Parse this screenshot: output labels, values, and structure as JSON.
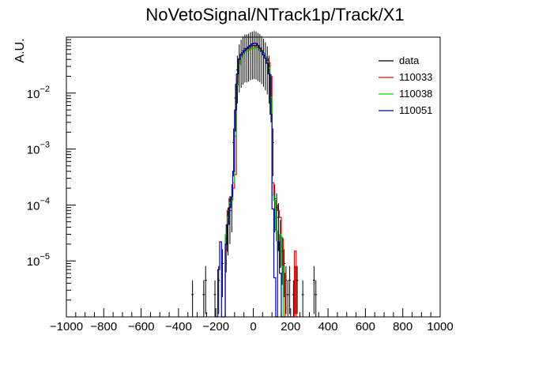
{
  "chart_data": {
    "type": "line",
    "title": "NoVetoSignal/NTrack1p/Track/X1",
    "xlabel": "",
    "ylabel": "A.U.",
    "xlim": [
      -1000,
      1000
    ],
    "ylim": [
      1e-06,
      0.1
    ],
    "ylog": true,
    "grid": false,
    "legend_position": "top-right",
    "x_ticks": [
      -1000,
      -800,
      -600,
      -400,
      -200,
      0,
      200,
      400,
      600,
      800,
      1000
    ],
    "y_ticks": [
      {
        "value": 1e-05,
        "base": "10",
        "exp": "-5"
      },
      {
        "value": 0.0001,
        "base": "10",
        "exp": "-4"
      },
      {
        "value": 0.001,
        "base": "10",
        "exp": "-3"
      },
      {
        "value": 0.01,
        "base": "10",
        "exp": "-2"
      }
    ],
    "bin_width": 10,
    "series": [
      {
        "name": "data",
        "style": "points",
        "color": "#000000",
        "x": [
          -325,
          -265,
          -255,
          -205,
          -185,
          -165,
          -145,
          -135,
          -125,
          -115,
          -105,
          -95,
          -85,
          -75,
          -65,
          -55,
          -45,
          -35,
          -25,
          -15,
          -5,
          5,
          15,
          25,
          35,
          45,
          55,
          65,
          75,
          85,
          95,
          105,
          115,
          125,
          135,
          145,
          155,
          165,
          175,
          185,
          195,
          215,
          225,
          235,
          265,
          325,
          335
        ],
        "y": [
          2.5e-06,
          2.5e-06,
          4.5e-06,
          2.5e-06,
          4.5e-06,
          9e-06,
          2.5e-05,
          5e-05,
          8e-05,
          0.00013,
          0.0013,
          0.0082,
          0.026,
          0.041,
          0.05,
          0.057,
          0.062,
          0.062,
          0.064,
          0.068,
          0.07,
          0.071,
          0.07,
          0.066,
          0.063,
          0.058,
          0.052,
          0.045,
          0.038,
          0.026,
          0.012,
          0.0013,
          0.00013,
          9e-05,
          6e-05,
          3e-05,
          1.5e-05,
          9e-06,
          4.5e-06,
          2.5e-06,
          4.5e-06,
          2.5e-06,
          4.5e-06,
          4.5e-06,
          2.5e-06,
          4.5e-06,
          2.5e-06
        ]
      },
      {
        "name": "110033",
        "style": "step",
        "color": "#ff0000",
        "edges": [
          -150,
          -140,
          -130,
          -120,
          -110,
          -100,
          -90,
          -80,
          -70,
          -60,
          -50,
          -40,
          -30,
          -20,
          -10,
          0,
          10,
          20,
          30,
          40,
          50,
          60,
          70,
          80,
          90,
          100,
          110,
          120,
          130,
          140,
          150,
          160,
          170,
          180,
          190,
          200,
          210,
          220,
          230,
          240
        ],
        "values": [
          1.5e-05,
          8e-05,
          0.00013,
          0.00012,
          0.0002,
          0.00035,
          0.018,
          0.036,
          0.046,
          0.052,
          0.056,
          0.058,
          0.06,
          0.063,
          0.064,
          0.064,
          0.066,
          0.065,
          0.061,
          0.056,
          0.051,
          0.045,
          0.041,
          0.035,
          0.02,
          0.00025,
          0.00012,
          0.0001,
          8e-05,
          6e-05,
          2.5e-05,
          6e-06,
          1e-06,
          1e-06,
          1e-06,
          1e-06,
          1e-06,
          1.5e-05,
          1e-06
        ]
      },
      {
        "name": "110038",
        "style": "step",
        "color": "#00dd00",
        "edges": [
          -150,
          -140,
          -130,
          -120,
          -110,
          -100,
          -90,
          -80,
          -70,
          -60,
          -50,
          -40,
          -30,
          -20,
          -10,
          0,
          10,
          20,
          30,
          40,
          50,
          60,
          70,
          80,
          90,
          100,
          110,
          120,
          130,
          140,
          150,
          160,
          170
        ],
        "values": [
          3e-05,
          6e-05,
          0.00011,
          0.00012,
          0.00025,
          0.0017,
          0.014,
          0.032,
          0.044,
          0.05,
          0.054,
          0.056,
          0.059,
          0.061,
          0.063,
          0.064,
          0.064,
          0.063,
          0.059,
          0.055,
          0.05,
          0.044,
          0.037,
          0.028,
          0.0084,
          0.00015,
          0.00012,
          3.5e-05,
          1.5e-05,
          3e-05,
          8e-06,
          1e-06
        ]
      },
      {
        "name": "110051",
        "style": "step",
        "color": "#0000cc",
        "edges": [
          -200,
          -190,
          -180,
          -170,
          -160,
          -150,
          -140,
          -130,
          -120,
          -110,
          -100,
          -90,
          -80,
          -70,
          -60,
          -50,
          -40,
          -30,
          -20,
          -10,
          0,
          10,
          20,
          30,
          40,
          50,
          60,
          70,
          80,
          90,
          100,
          110,
          120,
          130,
          140,
          150,
          160,
          170
        ],
        "values": [
          1e-06,
          7e-06,
          2.2e-05,
          1e-06,
          1e-06,
          2e-05,
          4.5e-05,
          9e-05,
          0.00014,
          0.0004,
          0.005,
          0.022,
          0.04,
          0.048,
          0.053,
          0.058,
          0.063,
          0.067,
          0.071,
          0.076,
          0.078,
          0.077,
          0.071,
          0.064,
          0.056,
          0.048,
          0.042,
          0.034,
          0.022,
          0.0042,
          8.5e-05,
          5e-06,
          1e-06,
          2.2e-05,
          6e-06,
          1e-06,
          1e-06
        ]
      }
    ]
  }
}
